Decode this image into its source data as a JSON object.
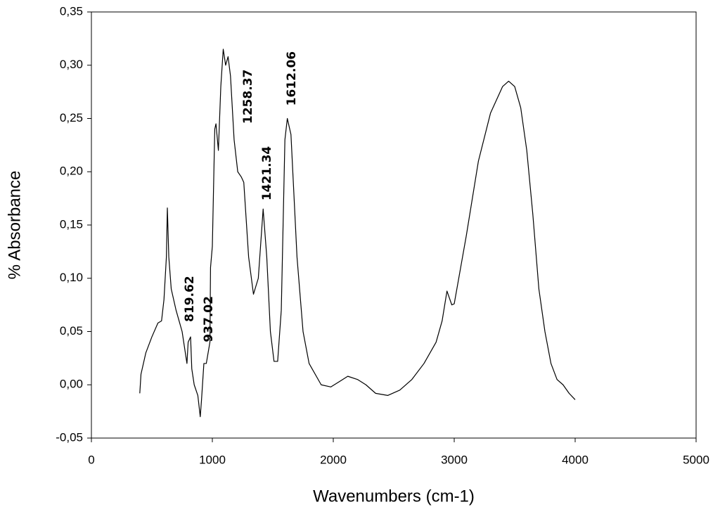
{
  "chart_data": {
    "type": "line",
    "xlabel": "Wavenumbers (cm-1)",
    "ylabel": "% Absorbance",
    "color": "#000000",
    "xlim": [
      0,
      5000
    ],
    "xticks": [
      0,
      1000,
      2000,
      3000,
      4000,
      5000
    ],
    "ylim": [
      -0.05,
      0.35
    ],
    "yticks": [
      {
        "value": -0.05,
        "label": "-0,05"
      },
      {
        "value": 0,
        "label": "0,00"
      },
      {
        "value": 0.05,
        "label": "0,05"
      },
      {
        "value": 0.1,
        "label": "0,10"
      },
      {
        "value": 0.15,
        "label": "0,15"
      },
      {
        "value": 0.2,
        "label": "0,20"
      },
      {
        "value": 0.25,
        "label": "0,25"
      },
      {
        "value": 0.3,
        "label": "0,30"
      },
      {
        "value": 0.35,
        "label": "0,35"
      }
    ],
    "grid": false,
    "x": [
      400,
      410,
      450,
      500,
      550,
      580,
      600,
      620,
      628,
      640,
      660,
      700,
      750,
      790,
      800,
      820,
      830,
      850,
      880,
      900,
      910,
      930,
      950,
      980,
      985,
      1000,
      1020,
      1030,
      1050,
      1070,
      1090,
      1110,
      1130,
      1150,
      1180,
      1210,
      1240,
      1260,
      1300,
      1340,
      1380,
      1420,
      1450,
      1480,
      1510,
      1540,
      1570,
      1600,
      1620,
      1650,
      1700,
      1750,
      1800,
      1900,
      1980,
      2050,
      2120,
      2200,
      2270,
      2350,
      2450,
      2550,
      2650,
      2750,
      2850,
      2900,
      2940,
      2980,
      3000,
      3100,
      3200,
      3300,
      3400,
      3450,
      3500,
      3550,
      3600,
      3650,
      3700,
      3750,
      3800,
      3850,
      3900,
      3950,
      4000
    ],
    "values": [
      -0.008,
      0.01,
      0.03,
      0.045,
      0.058,
      0.06,
      0.08,
      0.12,
      0.166,
      0.12,
      0.09,
      0.07,
      0.05,
      0.02,
      0.04,
      0.045,
      0.015,
      0.0,
      -0.01,
      -0.03,
      -0.015,
      0.02,
      0.02,
      0.04,
      0.11,
      0.13,
      0.24,
      0.245,
      0.22,
      0.28,
      0.315,
      0.3,
      0.308,
      0.29,
      0.23,
      0.2,
      0.195,
      0.19,
      0.12,
      0.085,
      0.1,
      0.165,
      0.12,
      0.05,
      0.022,
      0.022,
      0.07,
      0.23,
      0.25,
      0.235,
      0.12,
      0.05,
      0.02,
      0.0,
      -0.002,
      0.003,
      0.008,
      0.005,
      0.0,
      -0.008,
      -0.01,
      -0.005,
      0.005,
      0.02,
      0.04,
      0.06,
      0.088,
      0.075,
      0.076,
      0.14,
      0.21,
      0.255,
      0.28,
      0.285,
      0.28,
      0.26,
      0.22,
      0.16,
      0.09,
      0.05,
      0.02,
      0.005,
      0.0,
      -0.008,
      -0.014
    ],
    "annotations": [
      {
        "label": "819.62",
        "x": 814,
        "y": 0.059
      },
      {
        "label": "937.02",
        "x": 971,
        "y": 0.04
      },
      {
        "label": "1258.37",
        "x": 1297,
        "y": 0.245
      },
      {
        "label": "1421.34",
        "x": 1453,
        "y": 0.173
      },
      {
        "label": "1612.06",
        "x": 1657,
        "y": 0.262
      }
    ]
  }
}
